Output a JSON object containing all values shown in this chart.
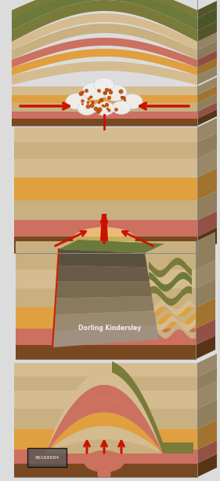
{
  "bg_color": "#dcdcdc",
  "fig_width": 2.81,
  "fig_height": 6.12,
  "dpi": 100,
  "colors": {
    "rock_olive": "#7a7a3a",
    "rock_green": "#6b7a3a",
    "rock_tan": "#c8a870",
    "rock_light_tan": "#d4bc90",
    "rock_orange": "#cc8840",
    "rock_yellow_orange": "#e0a040",
    "rock_yellow": "#d4a020",
    "rock_pink": "#d08878",
    "rock_salmon": "#cc7060",
    "rock_red_brown": "#aa4422",
    "rock_dark_brown": "#7a4820",
    "rock_sand": "#c8b080",
    "lava_red": "#cc2200",
    "lava_orange": "#ee6600",
    "lava_yellow": "#ffaa00",
    "lava_bright_yellow": "#ffcc00",
    "magma_deep": "#cc1100",
    "arrow_red": "#cc1100",
    "fault_gray_dark": "#5a5040",
    "fault_gray_med": "#7a6a50",
    "fault_gray_light": "#9a8a70",
    "cloud_white": "#f0f0f0",
    "side_shadow": "#b09070"
  }
}
